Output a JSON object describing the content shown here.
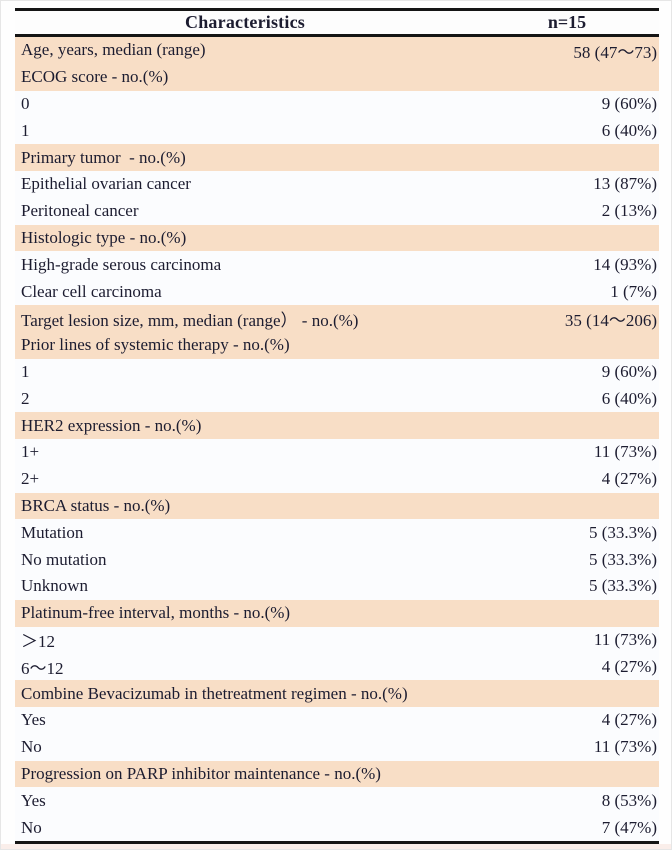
{
  "table": {
    "header": {
      "col1": "Characteristics",
      "col2": "n=15"
    },
    "rows": [
      {
        "label": "Age, years, median (range)",
        "value": "58 (47～73)",
        "shaded": true
      },
      {
        "label": "ECOG score - no.(%)",
        "value": "",
        "shaded": true
      },
      {
        "label": "0",
        "value": "9 (60%)",
        "shaded": false
      },
      {
        "label": "1",
        "value": "6 (40%)",
        "shaded": false
      },
      {
        "label": "Primary tumor  - no.(%)",
        "value": "",
        "shaded": true
      },
      {
        "label": "Epithelial ovarian cancer",
        "value": "13 (87%)",
        "shaded": false
      },
      {
        "label": "Peritoneal cancer",
        "value": "2 (13%)",
        "shaded": false
      },
      {
        "label": "Histologic type - no.(%)",
        "value": "",
        "shaded": true
      },
      {
        "label": "High-grade serous carcinoma",
        "value": "14 (93%)",
        "shaded": false
      },
      {
        "label": "Clear cell carcinoma",
        "value": "1 (7%)",
        "shaded": false
      },
      {
        "label": "Target lesion size, mm, median (range） - no.(%)",
        "value": "35 (14～206)",
        "shaded": true
      },
      {
        "label": "Prior lines of systemic therapy - no.(%)",
        "value": "",
        "shaded": true
      },
      {
        "label": "1",
        "value": "9 (60%)",
        "shaded": false
      },
      {
        "label": "2",
        "value": "6 (40%)",
        "shaded": false
      },
      {
        "label": "HER2 expression - no.(%)",
        "value": "",
        "shaded": true
      },
      {
        "label": "1+",
        "value": "11 (73%)",
        "shaded": false
      },
      {
        "label": "2+",
        "value": "4 (27%)",
        "shaded": false
      },
      {
        "label": "BRCA status - no.(%)",
        "value": "",
        "shaded": true
      },
      {
        "label": "Mutation",
        "value": "5 (33.3%)",
        "shaded": false
      },
      {
        "label": "No mutation",
        "value": "5 (33.3%)",
        "shaded": false
      },
      {
        "label": "Unknown",
        "value": "5 (33.3%)",
        "shaded": false
      },
      {
        "label": "Platinum-free interval, months - no.(%)",
        "value": "",
        "shaded": true
      },
      {
        "label": "＞12",
        "value": "11 (73%)",
        "shaded": false
      },
      {
        "label": "6～12",
        "value": "4 (27%)",
        "shaded": false
      },
      {
        "label": "Combine Bevacizumab in thetreatment regimen - no.(%)",
        "value": "",
        "shaded": true
      },
      {
        "label": "Yes",
        "value": "4 (27%)",
        "shaded": false
      },
      {
        "label": "No",
        "value": "11 (73%)",
        "shaded": false
      },
      {
        "label": "Progression on PARP inhibitor maintenance - no.(%)",
        "value": "",
        "shaded": true
      },
      {
        "label": "Yes",
        "value": "8 (53%)",
        "shaded": false
      },
      {
        "label": "No",
        "value": "7 (47%)",
        "shaded": false
      }
    ]
  },
  "chart_data": {
    "type": "table",
    "columns": [
      "Characteristics",
      "n=15"
    ],
    "rows": [
      [
        "Age, years, median (range)",
        "58 (47～73)"
      ],
      [
        "ECOG score - no.(%)",
        ""
      ],
      [
        "0",
        "9 (60%)"
      ],
      [
        "1",
        "6 (40%)"
      ],
      [
        "Primary tumor  - no.(%)",
        ""
      ],
      [
        "Epithelial ovarian cancer",
        "13 (87%)"
      ],
      [
        "Peritoneal cancer",
        "2 (13%)"
      ],
      [
        "Histologic type - no.(%)",
        ""
      ],
      [
        "High-grade serous carcinoma",
        "14 (93%)"
      ],
      [
        "Clear cell carcinoma",
        "1 (7%)"
      ],
      [
        "Target lesion size, mm, median (range） - no.(%)",
        "35 (14～206)"
      ],
      [
        "Prior lines of systemic therapy - no.(%)",
        ""
      ],
      [
        "1",
        "9 (60%)"
      ],
      [
        "2",
        "6 (40%)"
      ],
      [
        "HER2 expression - no.(%)",
        ""
      ],
      [
        "1+",
        "11 (73%)"
      ],
      [
        "2+",
        "4 (27%)"
      ],
      [
        "BRCA status - no.(%)",
        ""
      ],
      [
        "Mutation",
        "5 (33.3%)"
      ],
      [
        "No mutation",
        "5 (33.3%)"
      ],
      [
        "Unknown",
        "5 (33.3%)"
      ],
      [
        "Platinum-free interval, months - no.(%)",
        ""
      ],
      [
        "＞12",
        "11 (73%)"
      ],
      [
        "6～12",
        "4 (27%)"
      ],
      [
        "Combine Bevacizumab in thetreatment regimen - no.(%)",
        ""
      ],
      [
        "Yes",
        "4 (27%)"
      ],
      [
        "No",
        "11 (73%)"
      ],
      [
        "Progression on PARP inhibitor maintenance - no.(%)",
        ""
      ],
      [
        "Yes",
        "8 (53%)"
      ],
      [
        "No",
        "7 (47%)"
      ]
    ]
  },
  "colors": {
    "shaded_row": "#f8dec6",
    "plain_row": "#fbfcfe",
    "rule": "#151515",
    "text": "#1c1c30"
  }
}
